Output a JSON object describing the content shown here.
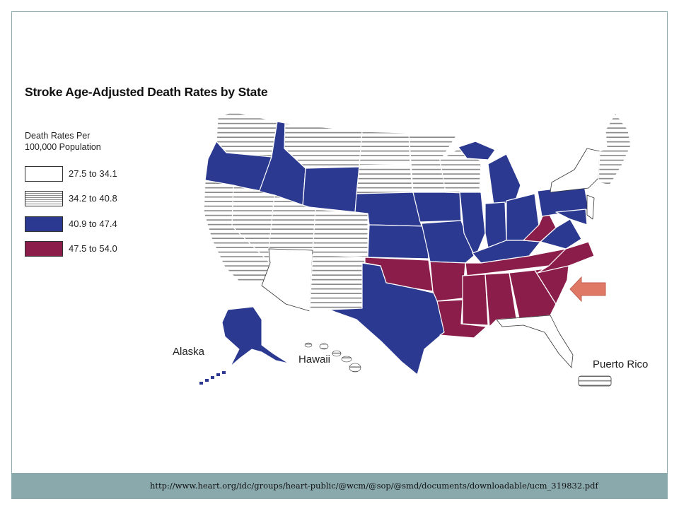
{
  "title": "Stroke Age-Adjusted Death Rates by State",
  "legend": {
    "heading_line1": "Death Rates Per",
    "heading_line2": "100,000 Population",
    "items": [
      {
        "label": "27.5 to 34.1",
        "fill": "white"
      },
      {
        "label": "34.2 to 40.8",
        "fill": "hatched"
      },
      {
        "label": "40.9 to 47.4",
        "fill": "#2b3990"
      },
      {
        "label": "47.5 to 54.0",
        "fill": "#8b1d4b"
      }
    ]
  },
  "colors": {
    "category_1": "#ffffff",
    "category_2_hatch": "#8c8c8c",
    "category_3": "#2b3990",
    "category_4": "#8b1d4b",
    "arrow": "#e07866",
    "footer_bar": "#8aa9ad"
  },
  "map_labels": {
    "alaska": "Alaska",
    "hawaii": "Hawaii",
    "puerto_rico": "Puerto Rico"
  },
  "footer": {
    "source_url": "http://www.heart.org/idc/groups/heart-public/@wcm/@sop/@smd/documents/downloadable/ucm_319832.pdf"
  }
}
